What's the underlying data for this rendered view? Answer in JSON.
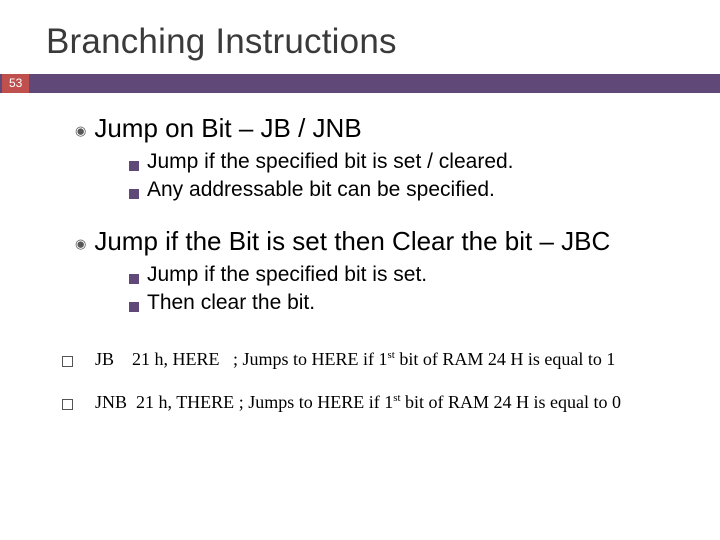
{
  "title": "Branching Instructions",
  "page_number": "53",
  "colors": {
    "bar": "#604978",
    "page_badge": "#c0504d",
    "square_bullet": "#604978",
    "text": "#000000",
    "title_text": "#3a3a3a",
    "background": "#ffffff"
  },
  "items": [
    {
      "heading": "Jump on Bit – JB / JNB",
      "subs": [
        "Jump if the specified bit is set / cleared.",
        "Any addressable bit can be specified."
      ]
    },
    {
      "heading": "Jump if the Bit is set then Clear the bit – JBC",
      "subs": [
        "Jump if the specified bit is set.",
        "Then clear the bit."
      ]
    }
  ],
  "footers": [
    {
      "mnemonic": "JB",
      "args": "21 h, HERE",
      "desc_pre": "; Jumps to HERE if 1",
      "desc_sup": "st",
      "desc_post": " bit of RAM 24 H is equal to 1"
    },
    {
      "mnemonic": "JNB",
      "args": "21 h, THERE",
      "desc_pre": "; Jumps to HERE if 1",
      "desc_sup": "st",
      "desc_post": " bit of RAM 24 H is equal to 0"
    }
  ]
}
